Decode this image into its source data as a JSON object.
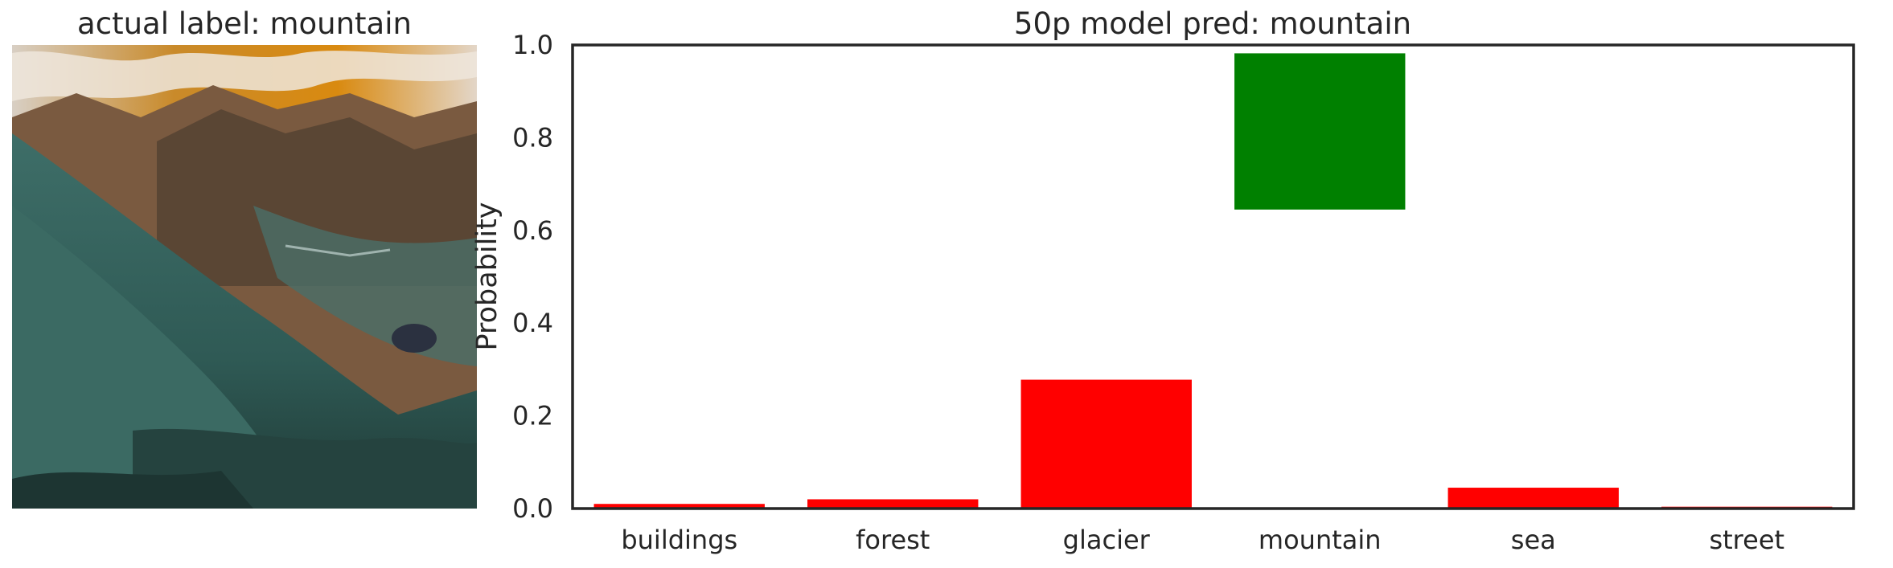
{
  "image_panel": {
    "title": "actual label: mountain"
  },
  "chart_data": {
    "type": "bar",
    "title": "50p model pred: mountain",
    "xlabel": "",
    "ylabel": "Probability",
    "ylim": [
      0,
      1.0
    ],
    "yticks": [
      "0.0",
      "0.2",
      "0.4",
      "0.6",
      "0.8",
      "1.0"
    ],
    "grid": false,
    "categories": [
      "buildings",
      "forest",
      "glacier",
      "mountain",
      "sea",
      "street"
    ],
    "bars": [
      {
        "bottom": 0.0,
        "top": 0.01,
        "color": "#ff0000"
      },
      {
        "bottom": 0.0,
        "top": 0.02,
        "color": "#ff0000"
      },
      {
        "bottom": 0.0,
        "top": 0.278,
        "color": "#ff0000"
      },
      {
        "bottom": 0.645,
        "top": 0.982,
        "color": "#008000"
      },
      {
        "bottom": 0.0,
        "top": 0.045,
        "color": "#ff0000"
      },
      {
        "bottom": 0.0,
        "top": 0.004,
        "color": "#ff0000"
      }
    ]
  }
}
